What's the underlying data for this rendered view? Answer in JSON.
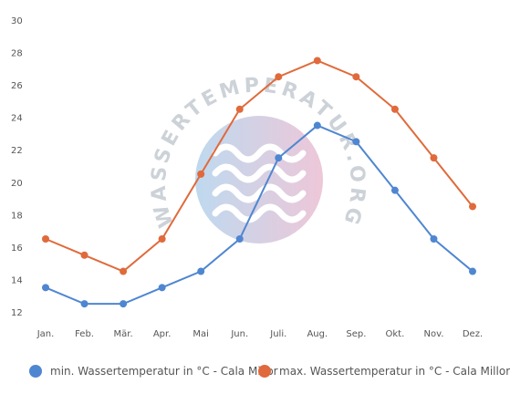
{
  "chart_data": {
    "type": "line",
    "categories": [
      "Jan.",
      "Feb.",
      "Mär.",
      "Apr.",
      "Mai",
      "Jun.",
      "Juli.",
      "Aug.",
      "Sep.",
      "Okt.",
      "Nov.",
      "Dez."
    ],
    "series": [
      {
        "name": "min. Wassertemperatur in °C - Cala Millor",
        "color": "#4f86d1",
        "values": [
          13.5,
          12.5,
          12.5,
          13.5,
          14.5,
          16.5,
          21.5,
          23.5,
          22.5,
          19.5,
          16.5,
          14.5
        ]
      },
      {
        "name": "max. Wassertemperatur in °C - Cala Millor",
        "color": "#e06a3b",
        "values": [
          16.5,
          15.5,
          14.5,
          16.5,
          20.5,
          24.5,
          26.5,
          27.5,
          26.5,
          24.5,
          21.5,
          18.5
        ]
      }
    ],
    "y_ticks": [
      "12",
      "14",
      "16",
      "18",
      "20",
      "22",
      "24",
      "26",
      "28",
      "30"
    ],
    "ylim": [
      12,
      30
    ],
    "grid": false,
    "legend_position": "bottom",
    "title": "",
    "xlabel": "",
    "ylabel": ""
  },
  "watermark": {
    "text": "WASSERTEMPERATUR.ORG"
  }
}
